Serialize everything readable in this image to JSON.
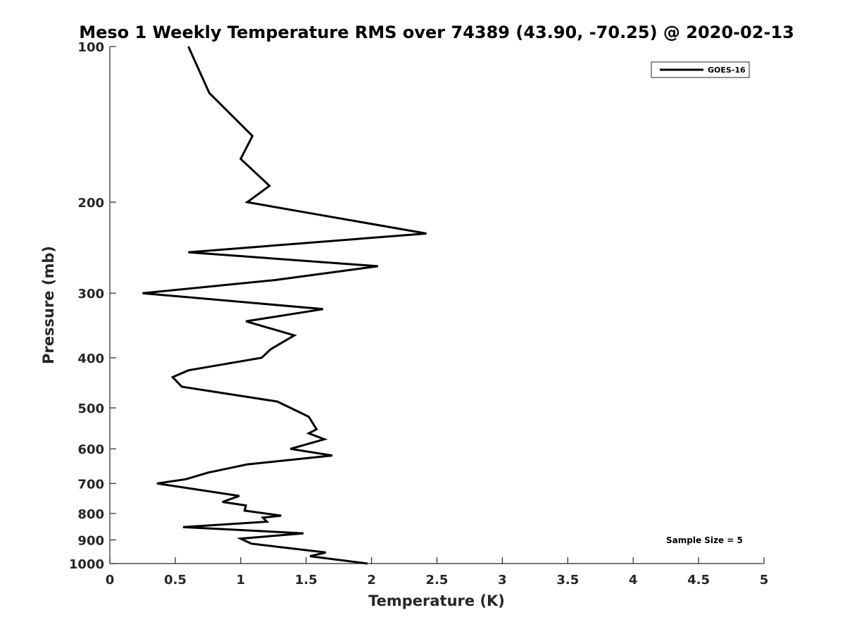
{
  "chart_data": {
    "type": "line",
    "title": "Meso 1 Weekly Temperature RMS over 74389 (43.90, -70.25) @ 2020-02-13",
    "xlabel": "Temperature (K)",
    "ylabel": "Pressure (mb)",
    "xlim": [
      0,
      5
    ],
    "ylim": [
      100,
      1000
    ],
    "yscale": "log",
    "y_reversed": true,
    "x_ticks": [
      "0",
      "0.5",
      "1",
      "1.5",
      "2",
      "2.5",
      "3",
      "3.5",
      "4",
      "4.5",
      "5"
    ],
    "y_ticks": [
      "100",
      "200",
      "300",
      "400",
      "500",
      "600",
      "700",
      "800",
      "900",
      "1000"
    ],
    "grid": false,
    "legend_position": "top-right",
    "annotation": "Sample Size = 5",
    "series": [
      {
        "name": "GOES-16",
        "color": "#000000",
        "x": [
          0.6,
          0.76,
          1.09,
          1.0,
          1.22,
          1.05,
          2.42,
          0.6,
          2.05,
          1.26,
          0.25,
          1.63,
          1.04,
          1.41,
          1.23,
          1.16,
          0.6,
          0.48,
          0.55,
          1.28,
          1.52,
          1.58,
          1.52,
          1.64,
          1.38,
          1.7,
          1.05,
          0.75,
          0.58,
          0.36,
          0.99,
          0.86,
          1.04,
          1.03,
          1.31,
          1.17,
          1.2,
          0.56,
          1.48,
          1.0,
          1.08,
          1.65,
          1.53,
          1.97
        ],
        "y": [
          100,
          123,
          149,
          165,
          186,
          200,
          230,
          250,
          266,
          283,
          300,
          322,
          340,
          362,
          385,
          400,
          423,
          436,
          455,
          486,
          520,
          550,
          560,
          575,
          600,
          618,
          643,
          667,
          687,
          700,
          740,
          760,
          772,
          790,
          808,
          815,
          830,
          850,
          874,
          895,
          915,
          952,
          968,
          1000
        ]
      }
    ]
  }
}
